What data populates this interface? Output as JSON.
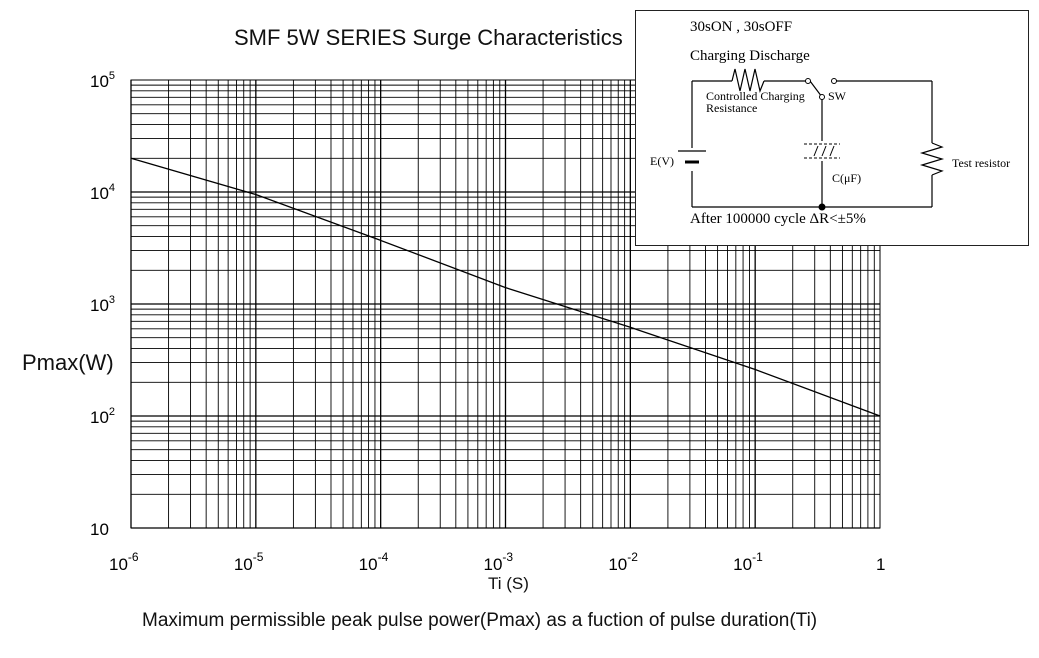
{
  "chart_data": {
    "type": "line",
    "title": "SMF 5W SERIES Surge Characteristics",
    "xlabel": "Ti (S)",
    "ylabel": "Pmax(W)",
    "caption": "Maximum permissible peak pulse power(Pmax) as a fuction of pulse duration(Ti)",
    "x_scale": "log",
    "y_scale": "log",
    "xlim": [
      1e-06,
      1
    ],
    "ylim": [
      10,
      100000
    ],
    "x_ticks": [
      {
        "value": 1e-06,
        "base": "10",
        "exp": "-6"
      },
      {
        "value": 1e-05,
        "base": "10",
        "exp": "-5"
      },
      {
        "value": 0.0001,
        "base": "10",
        "exp": "-4"
      },
      {
        "value": 0.001,
        "base": "10",
        "exp": "-3"
      },
      {
        "value": 0.01,
        "base": "10",
        "exp": "-2"
      },
      {
        "value": 0.1,
        "base": "10",
        "exp": "-1"
      },
      {
        "value": 1,
        "base": "1",
        "exp": ""
      }
    ],
    "y_ticks": [
      {
        "value": 10,
        "base": "10",
        "exp": ""
      },
      {
        "value": 100,
        "base": "10",
        "exp": "2"
      },
      {
        "value": 1000,
        "base": "10",
        "exp": "3"
      },
      {
        "value": 10000,
        "base": "10",
        "exp": "4"
      },
      {
        "value": 100000,
        "base": "10",
        "exp": "5"
      }
    ],
    "grid": true,
    "series": [
      {
        "points": [
          [
            1e-06,
            20000
          ],
          [
            1e-05,
            9500
          ],
          [
            0.0001,
            3700
          ],
          [
            0.001,
            1400
          ],
          [
            0.01,
            620
          ],
          [
            0.1,
            260
          ],
          [
            1,
            100
          ]
        ]
      }
    ]
  },
  "inset": {
    "line1": "30sON , 30sOFF",
    "line2": "Charging Discharge",
    "resistor_label_1": "Controlled Charging",
    "resistor_label_2": "Resistance",
    "switch_label": "SW",
    "source_label": "E(V)",
    "capacitor_label": "C(μF)",
    "test_resistor_label": "Test resistor",
    "footer": "After 100000 cycle ΔR<±5%"
  }
}
